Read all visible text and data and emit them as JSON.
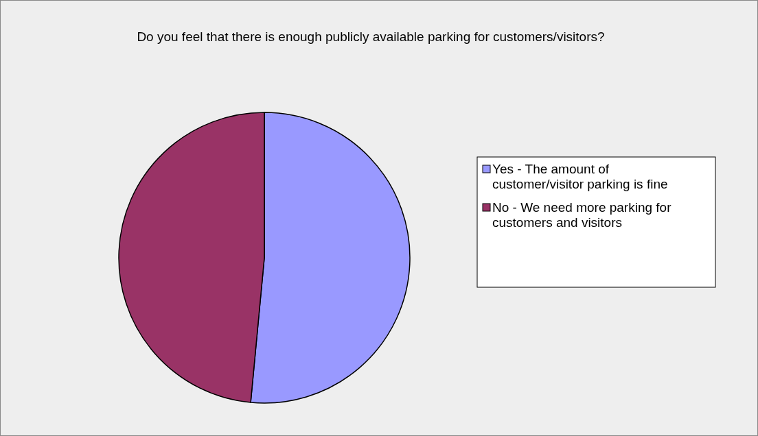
{
  "chart_data": {
    "type": "pie",
    "title": "Do you feel that there is enough publicly available parking for customers/visitors?",
    "categories": [
      "Yes - The amount of customer/visitor parking is fine",
      "No - We need more parking for customers and visitors"
    ],
    "values": [
      51.5,
      48.5
    ],
    "colors": [
      "#9999ff",
      "#993366"
    ],
    "legend": "right"
  }
}
